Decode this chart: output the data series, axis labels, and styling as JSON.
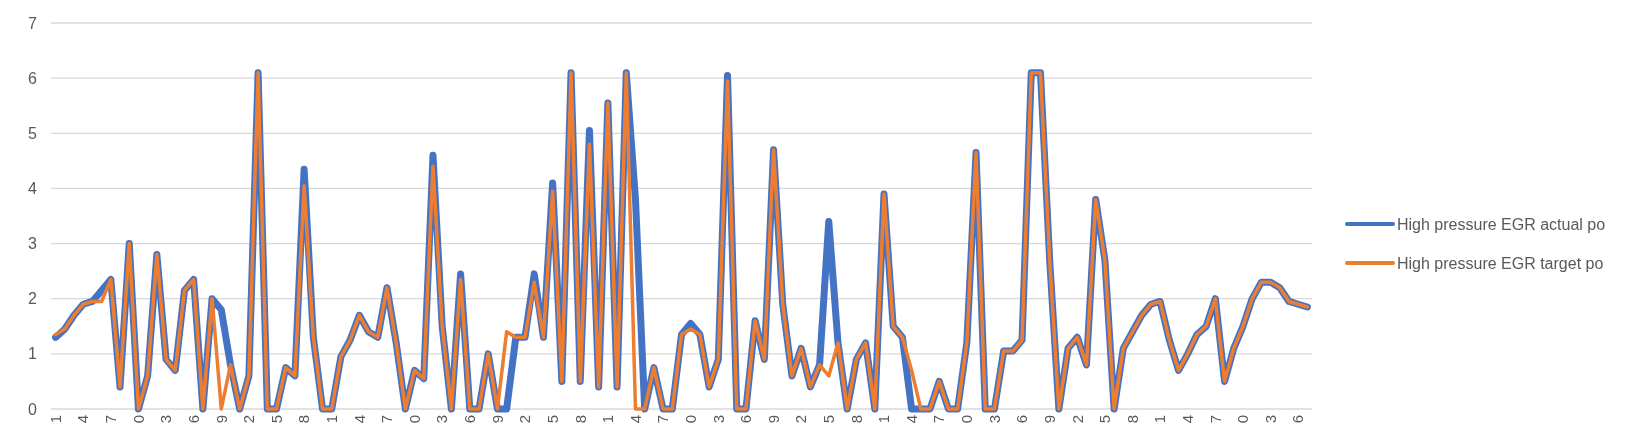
{
  "chart_data": {
    "type": "line",
    "categories": [
      "1",
      null,
      null,
      "4",
      null,
      null,
      "7",
      null,
      null,
      "0",
      null,
      null,
      "3",
      null,
      null,
      "6",
      null,
      null,
      "9",
      null,
      null,
      "2",
      null,
      null,
      "5",
      null,
      null,
      "8",
      null,
      null,
      "1",
      null,
      null,
      "4",
      null,
      null,
      "7",
      null,
      null,
      "0",
      null,
      null,
      "3",
      null,
      null,
      "6",
      null,
      null,
      "9",
      null,
      null,
      "2",
      null,
      null,
      "5",
      null,
      null,
      "8",
      null,
      null,
      "1",
      null,
      null,
      "4",
      null,
      null,
      "7",
      null,
      null,
      "0",
      null,
      null,
      "3",
      null,
      null,
      "6",
      null,
      null,
      "9",
      null,
      null,
      "2",
      null,
      null,
      "5",
      null,
      null,
      "8",
      null,
      null,
      "1",
      null,
      null,
      "4",
      null,
      null,
      "7",
      null,
      null,
      "0",
      null,
      null,
      "3",
      null,
      null,
      "6",
      null,
      null,
      "9",
      null,
      null,
      "2",
      null,
      null,
      "5",
      null,
      null,
      "8",
      null,
      null,
      "1",
      null,
      null,
      "4",
      null,
      null,
      "7",
      null,
      null,
      "0",
      null,
      null,
      "3",
      null,
      null,
      "6",
      null
    ],
    "series": [
      {
        "name": "High pressure EGR actual po",
        "color": "#4472c4",
        "values": [
          1.3,
          1.45,
          1.7,
          1.9,
          1.95,
          2.15,
          2.35,
          0.4,
          3.0,
          0,
          0.6,
          2.8,
          0.9,
          0.7,
          2.15,
          2.35,
          0,
          2.0,
          1.8,
          0.8,
          0,
          0.6,
          6.1,
          0,
          0,
          0.75,
          0.6,
          4.35,
          1.3,
          0,
          0,
          0.95,
          1.25,
          1.7,
          1.4,
          1.3,
          2.2,
          1.2,
          0,
          0.7,
          0.55,
          4.6,
          1.5,
          0,
          2.45,
          0,
          0,
          1.0,
          0,
          0,
          1.3,
          1.3,
          2.45,
          1.3,
          4.1,
          0.5,
          6.1,
          0.5,
          5.05,
          0.4,
          5.55,
          0.4,
          6.1,
          3.8,
          0,
          0.75,
          0,
          0,
          1.35,
          1.55,
          1.35,
          0.4,
          0.9,
          6.05,
          0,
          0,
          1.6,
          0.9,
          4.7,
          1.9,
          0.6,
          1.1,
          0.4,
          0.8,
          3.4,
          1.2,
          0,
          0.9,
          1.2,
          0,
          3.9,
          1.5,
          1.3,
          0,
          0,
          0,
          0.5,
          0,
          0,
          1.2,
          4.65,
          0,
          0,
          1.05,
          1.05,
          1.25,
          6.1,
          6.1,
          2.7,
          0,
          1.1,
          1.3,
          0.8,
          3.8,
          2.7,
          0,
          1.1,
          1.4,
          1.7,
          1.9,
          1.95,
          1.25,
          0.7,
          1.0,
          1.35,
          1.5,
          2.0,
          0.5,
          1.1,
          1.5,
          2.0,
          2.3,
          2.3,
          2.2,
          1.95,
          1.9,
          1.85
        ]
      },
      {
        "name": "High pressure EGR target po",
        "color": "#ed7d31",
        "values": [
          1.35,
          1.45,
          1.7,
          1.9,
          1.95,
          1.95,
          2.35,
          0.4,
          3.0,
          0,
          0.6,
          2.8,
          0.9,
          0.7,
          2.15,
          2.35,
          0,
          2.0,
          0,
          0.8,
          0,
          0.6,
          6.1,
          0,
          0,
          0.75,
          0.6,
          4.05,
          1.3,
          0,
          0,
          0.95,
          1.25,
          1.7,
          1.4,
          1.3,
          2.2,
          1.2,
          0,
          0.7,
          0.55,
          4.4,
          1.5,
          0,
          2.35,
          0,
          0,
          1.0,
          0,
          1.4,
          1.3,
          1.3,
          2.3,
          1.3,
          3.95,
          0.5,
          6.1,
          0.5,
          4.8,
          0.4,
          5.55,
          0.4,
          6.1,
          0,
          0,
          0.75,
          0,
          0,
          1.35,
          1.45,
          1.35,
          0.4,
          0.9,
          5.95,
          0,
          0,
          1.6,
          0.9,
          4.7,
          1.9,
          0.6,
          1.1,
          0.4,
          0.8,
          0.6,
          1.2,
          0,
          0.9,
          1.2,
          0,
          3.9,
          1.5,
          1.3,
          0.7,
          0,
          0,
          0.5,
          0,
          0,
          1.2,
          4.65,
          0,
          0,
          1.05,
          1.05,
          1.25,
          6.1,
          6.1,
          2.7,
          0,
          1.1,
          1.3,
          0.8,
          3.8,
          2.7,
          0,
          1.1,
          1.4,
          1.7,
          1.9,
          1.95,
          1.25,
          0.7,
          1.0,
          1.35,
          1.5,
          2.0,
          0.5,
          1.1,
          1.5,
          2.0,
          2.3,
          2.3,
          2.2,
          1.95,
          1.9,
          1.85
        ]
      }
    ],
    "ylim": [
      0,
      7
    ],
    "yticks": [
      0,
      1,
      2,
      3,
      4,
      5,
      6,
      7
    ],
    "grid": "y",
    "legend": "right",
    "marker": "none",
    "line_style": "solid"
  }
}
